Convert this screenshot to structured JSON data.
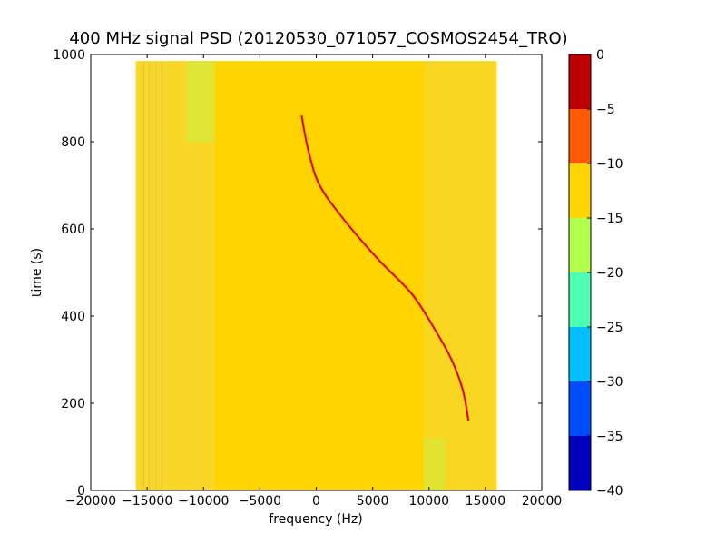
{
  "chart_data": {
    "type": "heatmap",
    "title": "400 MHz signal PSD (20120530_071057_COSMOS2454_TRO)",
    "xlabel": "frequency (Hz)",
    "ylabel": "time (s)",
    "xlim": [
      -20000,
      20000
    ],
    "ylim": [
      0,
      1000
    ],
    "xticks": [
      -20000,
      -15000,
      -10000,
      -5000,
      0,
      5000,
      10000,
      15000,
      20000
    ],
    "xtick_labels": [
      "−20000",
      "−15000",
      "−10000",
      "−5000",
      "0",
      "5000",
      "10000",
      "15000",
      "20000"
    ],
    "yticks": [
      0,
      200,
      400,
      600,
      800,
      1000
    ],
    "ytick_labels": [
      "0",
      "200",
      "400",
      "600",
      "800",
      "1000"
    ],
    "data_extent": {
      "x": [
        -16000,
        16000
      ],
      "y": [
        0,
        985
      ]
    },
    "background_level": -12.5,
    "signal_trace": {
      "name": "",
      "level": -2.5,
      "points": [
        {
          "f": -1300,
          "t": 860
        },
        {
          "f": -700,
          "t": 780
        },
        {
          "f": 300,
          "t": 700
        },
        {
          "f": 2500,
          "t": 620
        },
        {
          "f": 5500,
          "t": 530
        },
        {
          "f": 8500,
          "t": 450
        },
        {
          "f": 10500,
          "t": 370
        },
        {
          "f": 12000,
          "t": 300
        },
        {
          "f": 13000,
          "t": 230
        },
        {
          "f": 13500,
          "t": 160
        }
      ]
    },
    "weak_regions": [
      {
        "f_range": [
          -11500,
          -9000
        ],
        "t_range": [
          800,
          985
        ],
        "level": -17.5
      },
      {
        "f_range": [
          9500,
          11500
        ],
        "t_range": [
          0,
          120
        ],
        "level": -17.5
      }
    ],
    "edge_lines": [
      -15300,
      -14800,
      -14200,
      -13700
    ],
    "colorbar": {
      "boundaries": [
        -40,
        -35,
        -30,
        -25,
        -20,
        -15,
        -10,
        -5,
        0
      ],
      "tick_labels": [
        "−40",
        "−35",
        "−30",
        "−25",
        "−20",
        "−15",
        "−10",
        "−5",
        "0"
      ],
      "colors": [
        "#0000bf",
        "#004cff",
        "#00bfff",
        "#4cffb2",
        "#b2ff4c",
        "#ffd400",
        "#ff5a00",
        "#bf0000"
      ]
    }
  }
}
